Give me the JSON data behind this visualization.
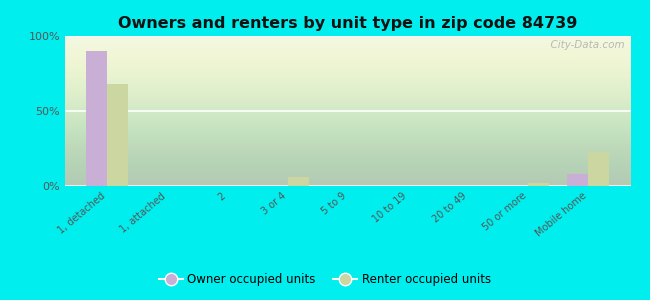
{
  "title": "Owners and renters by unit type in zip code 84739",
  "categories": [
    "1, detached",
    "1, attached",
    "2",
    "3 or 4",
    "5 to 9",
    "10 to 19",
    "20 to 49",
    "50 or more",
    "Mobile home"
  ],
  "owner_values": [
    90,
    0,
    0,
    0,
    0,
    0,
    0,
    0,
    8
  ],
  "renter_values": [
    68,
    0,
    0,
    6,
    0,
    0,
    0,
    2,
    23
  ],
  "owner_color": "#c9aed6",
  "renter_color": "#ccd6a0",
  "background_color": "#00eeee",
  "plot_bg_color": "#f0f5e0",
  "ylabel": "",
  "ylim": [
    0,
    100
  ],
  "yticks": [
    0,
    50,
    100
  ],
  "ytick_labels": [
    "0%",
    "50%",
    "100%"
  ],
  "bar_width": 0.35,
  "legend_owner": "Owner occupied units",
  "legend_renter": "Renter occupied units",
  "watermark": "  City-Data.com"
}
